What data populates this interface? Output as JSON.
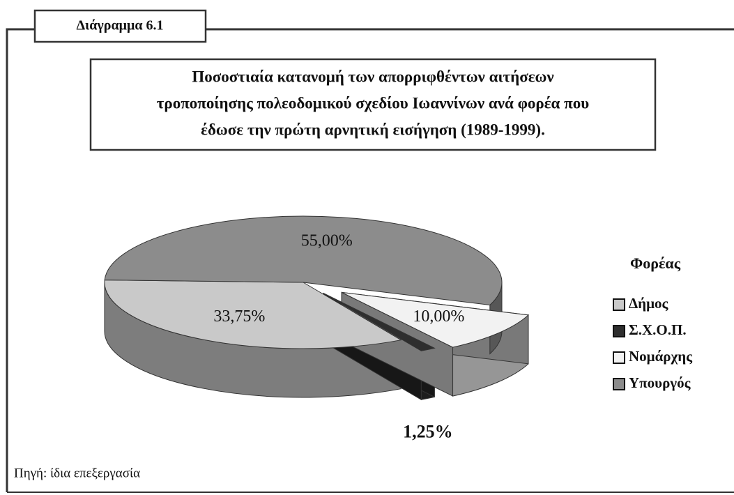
{
  "figure_label": "Διάγραμμα 6.1",
  "source": "Πηγή: ίδια επεξεργασία",
  "chart_data": {
    "type": "pie",
    "title": [
      "Ποσοστιαία κατανομή των απορριφθέντων αιτήσεων",
      "τροποποίησης πολεοδομικού σχεδίου Ιωαννίνων ανά φορέα που",
      "έδωσε την πρώτη αρνητική εισήγηση (1989-1999)."
    ],
    "legend_title": "Φορέας",
    "categories": [
      "Δήμος",
      "Σ.Χ.Ο.Π.",
      "Νομάρχης",
      "Υπουργός"
    ],
    "values": [
      33.75,
      1.25,
      10,
      55
    ],
    "value_labels": [
      "33,75%",
      "1,25%",
      "10,00%",
      "55,00%"
    ],
    "colors": [
      "#c9c9c9",
      "#2e2e2e",
      "#f2f2f2",
      "#8c8c8c"
    ],
    "legend": "right"
  }
}
